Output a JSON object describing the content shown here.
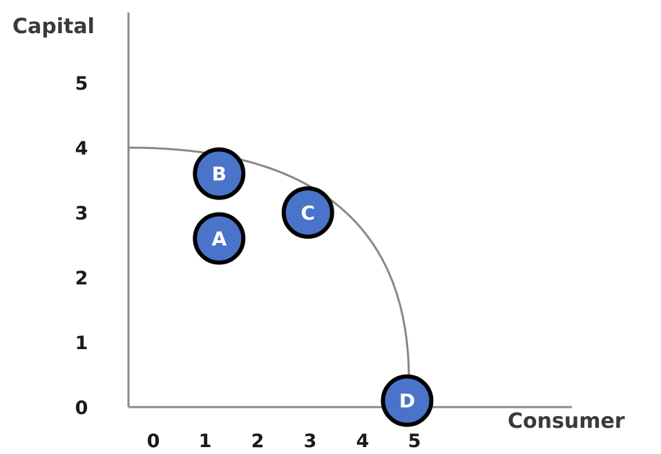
{
  "chart_data": {
    "type": "line",
    "title": "",
    "xlabel": "Consumer",
    "ylabel": "Capital",
    "x_ticks": [
      "0",
      "1",
      "2",
      "3",
      "4",
      "5"
    ],
    "y_ticks": [
      "0",
      "1",
      "2",
      "3",
      "4",
      "5"
    ],
    "xlim": [
      0,
      5
    ],
    "ylim": [
      0,
      5
    ],
    "grid": false,
    "curve": {
      "shape": "production possibilities frontier",
      "x_intercept": 5,
      "y_intercept": 4
    },
    "points": [
      {
        "label": "A",
        "x": 1.3,
        "y": 2.6
      },
      {
        "label": "B",
        "x": 1.3,
        "y": 3.6
      },
      {
        "label": "C",
        "x": 3.0,
        "y": 3.0
      },
      {
        "label": "D",
        "x": 4.9,
        "y": 0.1
      }
    ],
    "colors": {
      "marker_fill": "#4a74c9",
      "marker_stroke": "#000000",
      "curve": "#888888",
      "axis": "#8a8a8a"
    }
  }
}
